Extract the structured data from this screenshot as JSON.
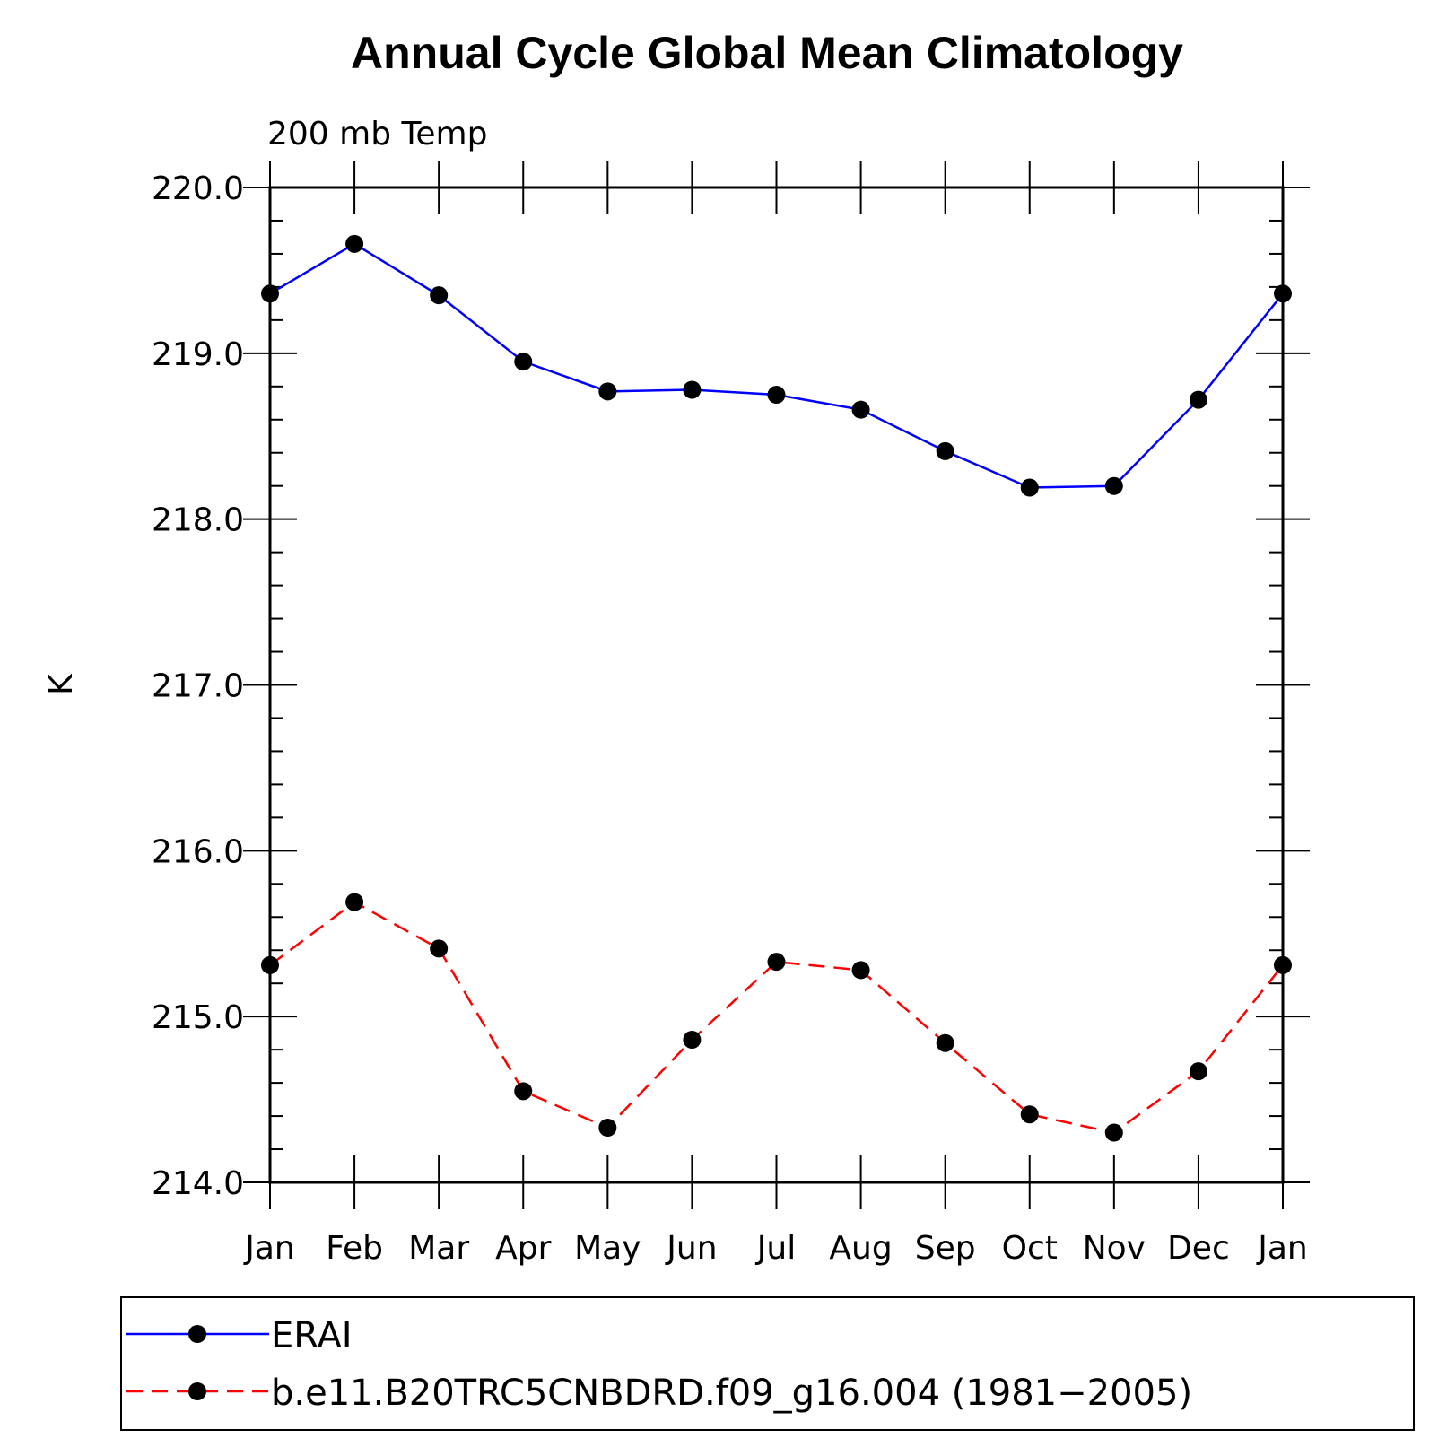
{
  "chart_data": {
    "type": "line",
    "title": "Annual Cycle Global Mean Climatology",
    "subtitle": "200 mb Temp",
    "xlabel": "",
    "ylabel": "K",
    "categories": [
      "Jan",
      "Feb",
      "Mar",
      "Apr",
      "May",
      "Jun",
      "Jul",
      "Aug",
      "Sep",
      "Oct",
      "Nov",
      "Dec",
      "Jan"
    ],
    "ylim": [
      214.0,
      220.0
    ],
    "yticks": [
      "214.0",
      "215.0",
      "216.0",
      "217.0",
      "218.0",
      "219.0",
      "220.0"
    ],
    "grid": false,
    "legend_position": "bottom",
    "series": [
      {
        "name": "ERAI",
        "color": "#0000ff",
        "dash": "solid",
        "marker": "filled-circle",
        "values": [
          219.36,
          219.66,
          219.35,
          218.95,
          218.77,
          218.78,
          218.75,
          218.66,
          218.41,
          218.19,
          218.2,
          218.72,
          219.36
        ]
      },
      {
        "name": "b.e11.B20TRC5CNBDRD.f09_g16.004 (1981−2005)",
        "color": "#ff0000",
        "dash": "dashed",
        "marker": "filled-circle",
        "values": [
          215.31,
          215.69,
          215.41,
          214.55,
          214.33,
          214.86,
          215.33,
          215.28,
          214.84,
          214.41,
          214.3,
          214.67,
          215.31
        ]
      }
    ]
  }
}
